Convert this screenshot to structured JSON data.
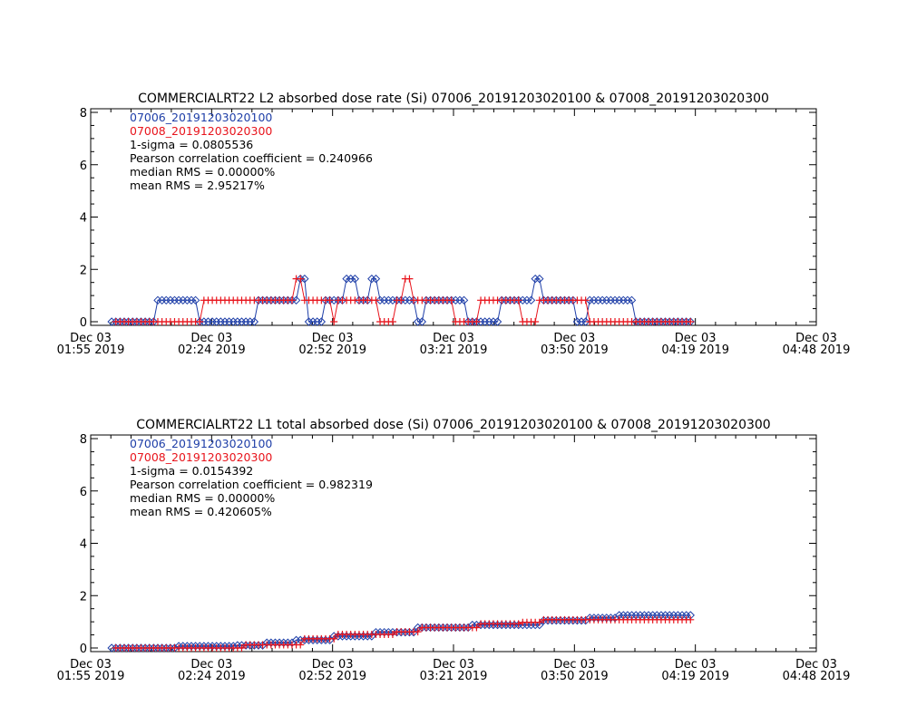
{
  "colors": {
    "series1": "#1f3fa8",
    "series2": "#e8141c",
    "axis": "#000000",
    "text": "#000000"
  },
  "chart_data": [
    {
      "type": "line",
      "title": "COMMERCIALRT22 L2 absorbed dose rate (Si) 07006_20191203020100 & 07008_20191203020300",
      "xlabel": "",
      "ylabel": "",
      "ylim": [
        0,
        8
      ],
      "yticks": [
        "0",
        "2",
        "4",
        "6",
        "8"
      ],
      "xticks": [
        {
          "l1": "Dec 03",
          "l2": "01:55 2019"
        },
        {
          "l1": "Dec 03",
          "l2": "02:24 2019"
        },
        {
          "l1": "Dec 03",
          "l2": "02:52 2019"
        },
        {
          "l1": "Dec 03",
          "l2": "03:21 2019"
        },
        {
          "l1": "Dec 03",
          "l2": "03:50 2019"
        },
        {
          "l1": "Dec 03",
          "l2": "04:19 2019"
        },
        {
          "l1": "Dec 03",
          "l2": "04:48 2019"
        }
      ],
      "xlim_minutes": [
        115,
        288
      ],
      "grid": false,
      "legend_position": "top-left",
      "annotations": [
        "1-sigma = 0.0805536",
        "Pearson correlation coefficient = 0.240966",
        "median RMS = 0.00000%",
        "mean RMS = 2.95217%"
      ],
      "series": [
        {
          "name": "07006_20191203020100",
          "marker": "diamond",
          "segments": [
            {
              "t0": 120,
              "t1": 130,
              "v": 0.0
            },
            {
              "t0": 131,
              "t1": 140,
              "v": 0.82
            },
            {
              "t0": 141,
              "t1": 154,
              "v": 0.0
            },
            {
              "t0": 155,
              "t1": 164,
              "v": 0.82
            },
            {
              "t0": 165,
              "t1": 166,
              "v": 1.64
            },
            {
              "t0": 167,
              "t1": 170,
              "v": 0.0
            },
            {
              "t0": 171,
              "t1": 175,
              "v": 0.82
            },
            {
              "t0": 176,
              "t1": 178,
              "v": 1.64
            },
            {
              "t0": 179,
              "t1": 181,
              "v": 0.82
            },
            {
              "t0": 182,
              "t1": 183,
              "v": 1.64
            },
            {
              "t0": 184,
              "t1": 192,
              "v": 0.82
            },
            {
              "t0": 193,
              "t1": 194,
              "v": 0.0
            },
            {
              "t0": 195,
              "t1": 204,
              "v": 0.82
            },
            {
              "t0": 205,
              "t1": 212,
              "v": 0.0
            },
            {
              "t0": 213,
              "t1": 220,
              "v": 0.82
            },
            {
              "t0": 221,
              "t1": 222,
              "v": 1.64
            },
            {
              "t0": 223,
              "t1": 230,
              "v": 0.82
            },
            {
              "t0": 231,
              "t1": 233,
              "v": 0.0
            },
            {
              "t0": 234,
              "t1": 244,
              "v": 0.82
            },
            {
              "t0": 245,
              "t1": 258,
              "v": 0.0
            }
          ]
        },
        {
          "name": "07008_20191203020300",
          "marker": "plus",
          "segments": [
            {
              "t0": 121,
              "t1": 141,
              "v": 0.0
            },
            {
              "t0": 142,
              "t1": 163,
              "v": 0.82
            },
            {
              "t0": 164,
              "t1": 165,
              "v": 1.64
            },
            {
              "t0": 166,
              "t1": 172,
              "v": 0.82
            },
            {
              "t0": 173,
              "t1": 173,
              "v": 0.0
            },
            {
              "t0": 174,
              "t1": 183,
              "v": 0.82
            },
            {
              "t0": 184,
              "t1": 187,
              "v": 0.0
            },
            {
              "t0": 188,
              "t1": 189,
              "v": 0.82
            },
            {
              "t0": 190,
              "t1": 191,
              "v": 1.64
            },
            {
              "t0": 192,
              "t1": 201,
              "v": 0.82
            },
            {
              "t0": 202,
              "t1": 207,
              "v": 0.0
            },
            {
              "t0": 208,
              "t1": 217,
              "v": 0.82
            },
            {
              "t0": 218,
              "t1": 221,
              "v": 0.0
            },
            {
              "t0": 222,
              "t1": 233,
              "v": 0.82
            },
            {
              "t0": 234,
              "t1": 258,
              "v": 0.0
            }
          ]
        }
      ]
    },
    {
      "type": "line",
      "title": "COMMERCIALRT22 L1 total absorbed dose (Si) 07006_20191203020100 & 07008_20191203020300",
      "xlabel": "",
      "ylabel": "",
      "ylim": [
        0,
        8
      ],
      "yticks": [
        "0",
        "2",
        "4",
        "6",
        "8"
      ],
      "xticks": [
        {
          "l1": "Dec 03",
          "l2": "01:55 2019"
        },
        {
          "l1": "Dec 03",
          "l2": "02:24 2019"
        },
        {
          "l1": "Dec 03",
          "l2": "02:52 2019"
        },
        {
          "l1": "Dec 03",
          "l2": "03:21 2019"
        },
        {
          "l1": "Dec 03",
          "l2": "03:50 2019"
        },
        {
          "l1": "Dec 03",
          "l2": "04:19 2019"
        },
        {
          "l1": "Dec 03",
          "l2": "04:48 2019"
        }
      ],
      "xlim_minutes": [
        115,
        288
      ],
      "grid": false,
      "legend_position": "top-left",
      "annotations": [
        "1-sigma = 0.0154392",
        "Pearson correlation coefficient = 0.982319",
        "median RMS = 0.00000%",
        "mean RMS = 0.420605%"
      ],
      "series": [
        {
          "name": "07006_20191203020100",
          "marker": "diamond",
          "segments": [
            {
              "t0": 120,
              "t1": 135,
              "v": 0.0
            },
            {
              "t0": 136,
              "t1": 149,
              "v": 0.07
            },
            {
              "t0": 150,
              "t1": 156,
              "v": 0.1
            },
            {
              "t0": 157,
              "t1": 163,
              "v": 0.2
            },
            {
              "t0": 164,
              "t1": 172,
              "v": 0.3
            },
            {
              "t0": 173,
              "t1": 182,
              "v": 0.45
            },
            {
              "t0": 183,
              "t1": 192,
              "v": 0.6
            },
            {
              "t0": 193,
              "t1": 205,
              "v": 0.78
            },
            {
              "t0": 206,
              "t1": 222,
              "v": 0.88
            },
            {
              "t0": 223,
              "t1": 233,
              "v": 1.05
            },
            {
              "t0": 234,
              "t1": 240,
              "v": 1.15
            },
            {
              "t0": 241,
              "t1": 258,
              "v": 1.25
            }
          ]
        },
        {
          "name": "07008_20191203020300",
          "marker": "plus",
          "segments": [
            {
              "t0": 121,
              "t1": 151,
              "v": 0.0
            },
            {
              "t0": 152,
              "t1": 165,
              "v": 0.12
            },
            {
              "t0": 166,
              "t1": 173,
              "v": 0.35
            },
            {
              "t0": 174,
              "t1": 187,
              "v": 0.52
            },
            {
              "t0": 188,
              "t1": 193,
              "v": 0.62
            },
            {
              "t0": 194,
              "t1": 207,
              "v": 0.78
            },
            {
              "t0": 208,
              "t1": 217,
              "v": 0.92
            },
            {
              "t0": 218,
              "t1": 222,
              "v": 0.98
            },
            {
              "t0": 223,
              "t1": 258,
              "v": 1.08
            }
          ]
        }
      ]
    }
  ]
}
